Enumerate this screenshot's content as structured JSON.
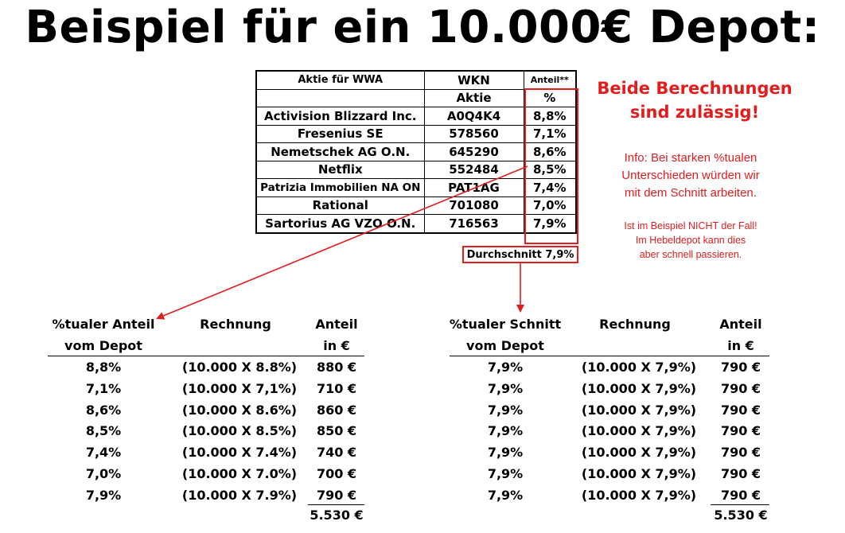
{
  "title": "Beispiel für ein 10.000€ Depot:",
  "stock_table": {
    "headers": [
      "Aktie für WWA",
      "WKN",
      "Anteil**"
    ],
    "subheaders": [
      "",
      "Aktie",
      "%"
    ],
    "rows": [
      [
        "Activision Blizzard Inc.",
        "A0Q4K4",
        "8,8%"
      ],
      [
        "Fresenius  SE",
        "578560",
        "7,1%"
      ],
      [
        "Nemetschek AG O.N.",
        "645290",
        "8,6%"
      ],
      [
        "Netflix",
        "552484",
        "8,5%"
      ],
      [
        "Patrizia Immobilien NA ON",
        "PAT1AG",
        "7,4%"
      ],
      [
        "Rational",
        "701080",
        "7,0%"
      ],
      [
        "Sartorius AG VZO O.N.",
        "716563",
        "7,9%"
      ]
    ],
    "average": "Durchschnitt 7,9%"
  },
  "headline": [
    "Beide Berechnungen",
    "sind zulässig!"
  ],
  "info1": [
    "Info: Bei starken %tualen",
    "Unterschieden würden wir",
    "mit dem Schnitt arbeiten."
  ],
  "info2": [
    "Ist im Beispiel NICHT der Fall!",
    "Im Hebeldepot  kann dies",
    "aber schnell passieren."
  ],
  "left_calc": {
    "headers": [
      [
        "%tualer Anteil",
        "vom Depot"
      ],
      [
        "Rechnung",
        ""
      ],
      [
        "Anteil",
        "in €"
      ]
    ],
    "rows": [
      [
        "8,8%",
        "(10.000 X 8.8%)",
        "880 €"
      ],
      [
        "7,1%",
        "(10.000 X 7,1%)",
        "710 €"
      ],
      [
        "8,6%",
        "(10.000 X 8.6%)",
        "860 €"
      ],
      [
        "8,5%",
        "(10.000 X 8.5%)",
        "850 €"
      ],
      [
        "7,4%",
        "(10.000 X 7.4%)",
        "740 €"
      ],
      [
        "7,0%",
        "(10.000 X 7.0%)",
        "700 €"
      ],
      [
        "7,9%",
        "(10.000 X 7.9%)",
        "790 €"
      ]
    ],
    "total": "5.530 €"
  },
  "right_calc": {
    "headers": [
      [
        "%tualer Schnitt",
        "vom Depot"
      ],
      [
        "Rechnung",
        ""
      ],
      [
        "Anteil",
        "in €"
      ]
    ],
    "rows": [
      [
        "7,9%",
        "(10.000 X 7,9%)",
        "790 €"
      ],
      [
        "7,9%",
        "(10.000 X 7,9%)",
        "790 €"
      ],
      [
        "7,9%",
        "(10.000 X 7,9%)",
        "790 €"
      ],
      [
        "7,9%",
        "(10.000 X 7,9%)",
        "790 €"
      ],
      [
        "7,9%",
        "(10.000 X 7,9%)",
        "790 €"
      ],
      [
        "7,9%",
        "(10.000 X 7,9%)",
        "790 €"
      ],
      [
        "7,9%",
        "(10.000 X 7,9%)",
        "790 €"
      ]
    ],
    "total": "5.530 €"
  },
  "colors": {
    "accent_red": "#e21d1d",
    "text": "#000000"
  }
}
